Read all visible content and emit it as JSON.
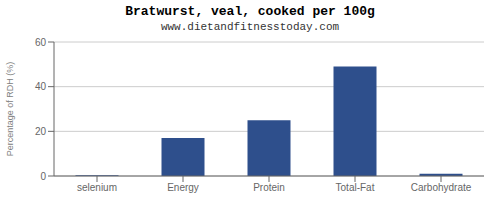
{
  "chart_data": {
    "type": "bar",
    "title": "Bratwurst, veal, cooked per 100g",
    "subtitle": "www.dietandfitnesstoday.com",
    "ylabel": "Percentage of RDH (%)",
    "categories": [
      "selenium",
      "Energy",
      "Protein",
      "Total-Fat",
      "Carbohydrate"
    ],
    "values": [
      0.3,
      17,
      25,
      49,
      1
    ],
    "color": "#2e4f8c",
    "ylim": [
      0,
      60
    ],
    "yticks": [
      0,
      20,
      40,
      60
    ],
    "grid": true
  }
}
